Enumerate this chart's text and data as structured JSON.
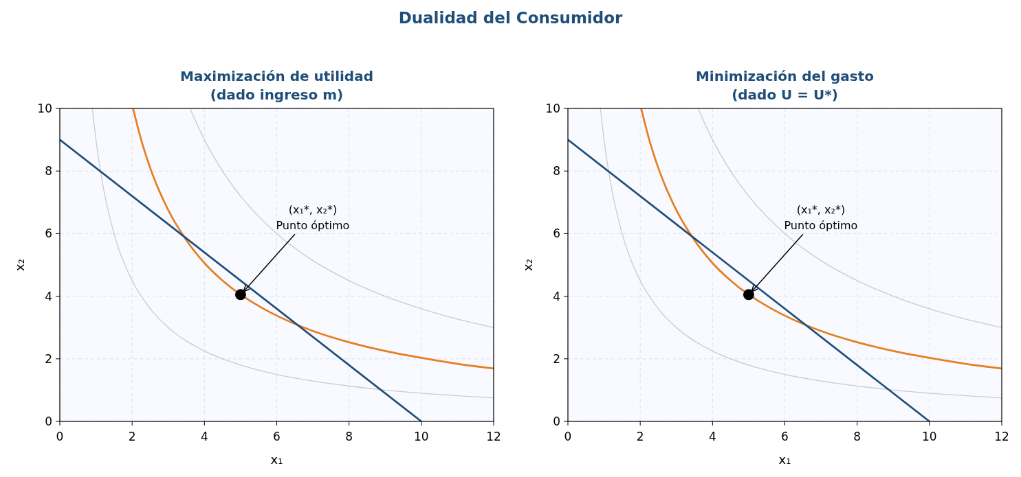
{
  "chart_data": [
    {
      "type": "line",
      "title": "Maximización de utilidad\n(dado ingreso m)",
      "xlabel": "x₁",
      "ylabel": "x₂",
      "xlim": [
        0,
        12
      ],
      "ylim": [
        0,
        10
      ],
      "xticks": [
        0,
        2,
        4,
        6,
        8,
        10,
        12
      ],
      "yticks": [
        0,
        2,
        4,
        6,
        8,
        10
      ],
      "grid": true,
      "annotations": [
        "Dualidad del Consumidor",
        {
          "text": "(x₁*, x₂*)\nPunto óptimo",
          "x": 5,
          "y": 4.05
        }
      ],
      "series": [
        {
          "color": "#c8cbd0",
          "x": [
            0.9,
            1,
            1.2,
            1.5,
            2,
            2.5,
            3,
            4,
            5,
            6,
            7,
            8,
            9,
            10,
            12
          ],
          "values": [
            10,
            9,
            7.5,
            6,
            4.5,
            3.6,
            3,
            2.25,
            1.8,
            1.5,
            1.29,
            1.13,
            1,
            0.9,
            0.75
          ]
        },
        {
          "color": "#e67e22",
          "x": [
            2.03,
            2.25,
            2.5,
            3,
            3.5,
            4,
            4.5,
            5.6,
            6,
            7,
            8,
            9,
            10,
            11,
            12
          ],
          "values": [
            9.98,
            9,
            8.1,
            6.75,
            5.79,
            5.06,
            4.5,
            3.62,
            3.38,
            2.89,
            2.53,
            2.25,
            2.03,
            1.84,
            1.69
          ]
        },
        {
          "color": "#c8cbd0",
          "x": [
            3.6,
            4,
            4.5,
            5,
            6,
            7,
            8,
            9,
            10,
            11,
            12
          ],
          "values": [
            10,
            9,
            8,
            7.2,
            6,
            5.14,
            4.5,
            4,
            3.6,
            3.27,
            3
          ]
        },
        {
          "color": "#1f4e79",
          "x": [
            0,
            10
          ],
          "values": [
            9,
            0
          ]
        },
        {
          "type": "scatter",
          "color": "#000000",
          "marker": "circle",
          "x": [
            5
          ],
          "values": [
            4.05
          ]
        }
      ]
    },
    {
      "type": "line",
      "title": "Minimización del gasto\n(dado U = U*)",
      "xlabel": "x₁",
      "ylabel": "x₂",
      "xlim": [
        0,
        12
      ],
      "ylim": [
        0,
        10
      ],
      "xticks": [
        0,
        2,
        4,
        6,
        8,
        10,
        12
      ],
      "yticks": [
        0,
        2,
        4,
        6,
        8,
        10
      ],
      "grid": true,
      "annotations": [
        {
          "text": "(x₁*, x₂*)\nPunto óptimo",
          "x": 5,
          "y": 4.05
        }
      ],
      "series": [
        {
          "color": "#c8cbd0",
          "x": [
            0.9,
            1,
            1.2,
            1.5,
            2,
            2.5,
            3,
            4,
            5,
            6,
            7,
            8,
            9,
            10,
            12
          ],
          "values": [
            10,
            9,
            7.5,
            6,
            4.5,
            3.6,
            3,
            2.25,
            1.8,
            1.5,
            1.29,
            1.13,
            1,
            0.9,
            0.75
          ]
        },
        {
          "color": "#e67e22",
          "x": [
            2.03,
            2.25,
            2.5,
            3,
            3.5,
            4,
            4.5,
            5.6,
            6,
            7,
            8,
            9,
            10,
            11,
            12
          ],
          "values": [
            9.98,
            9,
            8.1,
            6.75,
            5.79,
            5.06,
            4.5,
            3.62,
            3.38,
            2.89,
            2.53,
            2.25,
            2.03,
            1.84,
            1.69
          ]
        },
        {
          "color": "#c8cbd0",
          "x": [
            3.6,
            4,
            4.5,
            5,
            6,
            7,
            8,
            9,
            10,
            11,
            12
          ],
          "values": [
            10,
            9,
            8,
            7.2,
            6,
            5.14,
            4.5,
            4,
            3.6,
            3.27,
            3
          ]
        },
        {
          "color": "#1f4e79",
          "x": [
            0,
            10
          ],
          "values": [
            9,
            0
          ]
        },
        {
          "type": "scatter",
          "color": "#000000",
          "marker": "circle",
          "x": [
            5
          ],
          "values": [
            4.05
          ]
        }
      ]
    }
  ]
}
